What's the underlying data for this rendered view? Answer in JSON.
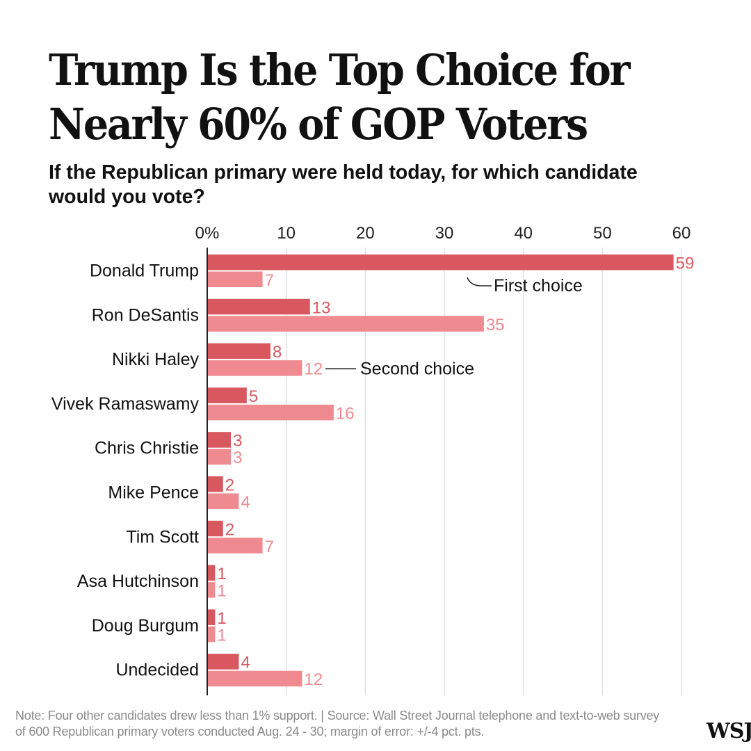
{
  "chart_data": {
    "type": "bar",
    "title": "Trump Is the Top Choice for Nearly 60% of GOP Voters",
    "subtitle": "If the Republican primary were held today, for which candidate would you vote?",
    "categories": [
      "Donald Trump",
      "Ron DeSantis",
      "Nikki Haley",
      "Vivek Ramaswamy",
      "Chris Christie",
      "Mike Pence",
      "Tim Scott",
      "Asa Hutchinson",
      "Doug Burgum",
      "Undecided"
    ],
    "series": [
      {
        "name": "First choice",
        "color": "#d9585f",
        "values": [
          59,
          13,
          8,
          5,
          3,
          2,
          2,
          1,
          1,
          4
        ]
      },
      {
        "name": "Second choice",
        "color": "#ee8a90",
        "values": [
          7,
          35,
          12,
          16,
          3,
          4,
          7,
          1,
          1,
          12
        ]
      }
    ],
    "xlim": [
      0,
      60
    ],
    "xticks": [
      0,
      10,
      20,
      30,
      40,
      50,
      60
    ],
    "xtick_labels": [
      "0%",
      "10",
      "20",
      "30",
      "40",
      "50",
      "60"
    ],
    "grid": true,
    "annotations": [
      {
        "text": "First choice",
        "series": 0,
        "category": "Donald Trump"
      },
      {
        "text": "Second choice",
        "series": 1,
        "category": "Nikki Haley"
      }
    ]
  },
  "footer": {
    "note": "Note: Four other candidates drew less than 1% support. | Source: Wall Street Journal telephone and text-to-web survey of 600 Republican primary voters conducted Aug. 24 - 30; margin of error: +/-4 pct. pts.",
    "logo": "WSJ"
  }
}
